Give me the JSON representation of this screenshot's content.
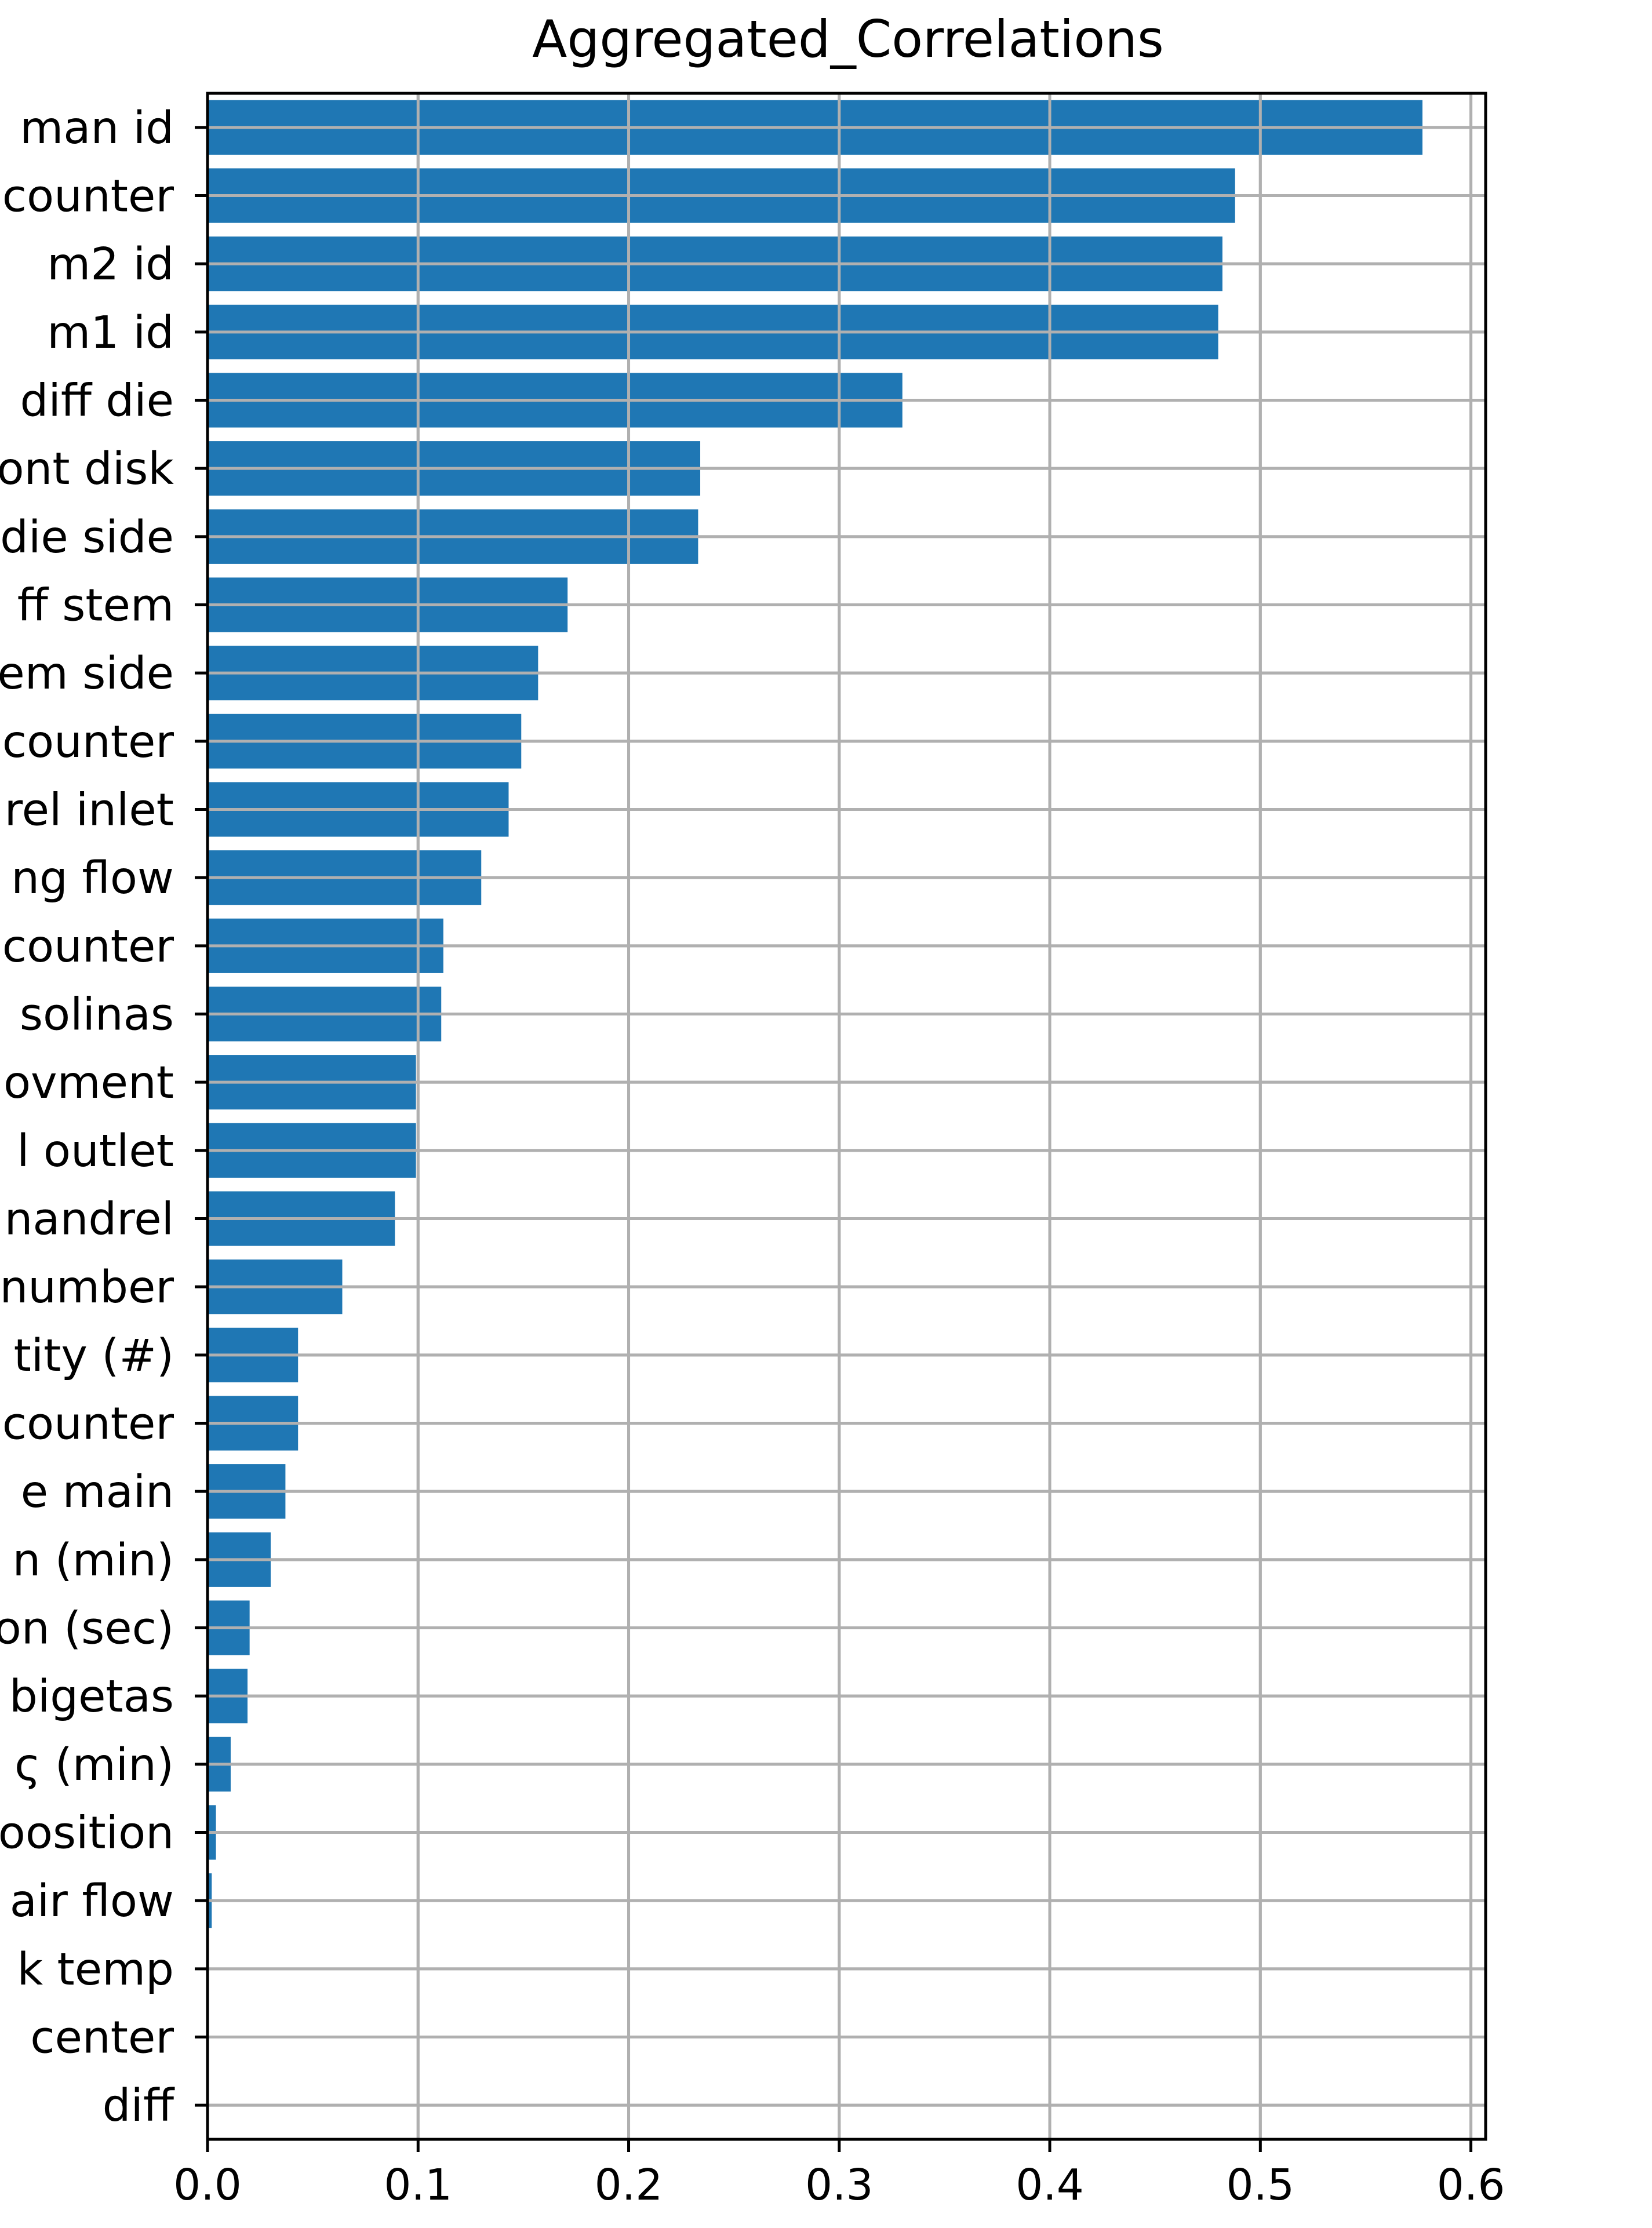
{
  "chart_data": {
    "type": "bar",
    "orientation": "horizontal",
    "title": "Aggregated_Correlations",
    "xlabel": "",
    "ylabel": "",
    "xlim": [
      0,
      0.607
    ],
    "xticks": [
      0.0,
      0.1,
      0.2,
      0.3,
      0.4,
      0.5,
      0.6
    ],
    "xtick_labels": [
      "0.0",
      "0.1",
      "0.2",
      "0.3",
      "0.4",
      "0.5",
      "0.6"
    ],
    "grid": true,
    "bar_color": "#1f77b4",
    "grid_color": "#b0b0b0",
    "categories": [
      "man id",
      "counter",
      "m2 id",
      "m1 id",
      "diff die",
      "ont disk",
      "die side",
      "ff stem",
      "em side",
      "counter",
      "rel inlet",
      "ng flow",
      "counter",
      "solinas",
      "ovment",
      "l outlet",
      "nandrel",
      "number",
      "tity (#)",
      "counter",
      "e main",
      "n (min)",
      "on (sec)",
      "bigetas",
      "ς (min)",
      "oosition",
      "air flow",
      "k temp",
      "center",
      "diff"
    ],
    "values": [
      0.577,
      0.488,
      0.482,
      0.48,
      0.33,
      0.234,
      0.233,
      0.171,
      0.157,
      0.149,
      0.143,
      0.13,
      0.112,
      0.111,
      0.099,
      0.099,
      0.089,
      0.064,
      0.043,
      0.043,
      0.037,
      0.03,
      0.02,
      0.019,
      0.011,
      0.004,
      0.002,
      0.0,
      0.0,
      0.0
    ]
  }
}
